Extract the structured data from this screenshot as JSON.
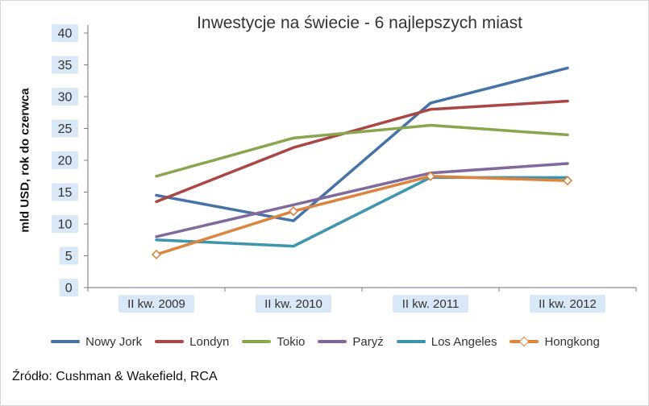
{
  "source": "Źródło: Cushman & Wakefield, RCA",
  "chart_data": {
    "type": "line",
    "title": "Inwestycje na świecie - 6 najlepszych miast",
    "ylabel": "mld USD, rok do czerwca",
    "xlabel": "",
    "categories": [
      "II kw. 2009",
      "II kw. 2010",
      "II kw. 2011",
      "II kw. 2012"
    ],
    "series": [
      {
        "name": "Nowy Jork",
        "color": "#4572A7",
        "values": [
          14.5,
          10.5,
          29.0,
          34.5
        ]
      },
      {
        "name": "Londyn",
        "color": "#AA4643",
        "values": [
          13.5,
          22.0,
          28.0,
          29.3
        ]
      },
      {
        "name": "Tokio",
        "color": "#89A54E",
        "values": [
          17.5,
          23.5,
          25.5,
          24.0
        ]
      },
      {
        "name": "Paryż",
        "color": "#80699B",
        "values": [
          8.0,
          13.0,
          18.0,
          19.5
        ]
      },
      {
        "name": "Los Angeles",
        "color": "#3D96AE",
        "values": [
          7.5,
          6.5,
          17.3,
          17.3
        ]
      },
      {
        "name": "Hongkong",
        "color": "#DB843D",
        "values": [
          5.2,
          12.0,
          17.5,
          16.8
        ],
        "marker": "diamond"
      }
    ],
    "ylim": [
      0,
      40
    ],
    "ytick_step": 5,
    "grid": false,
    "legend_position": "bottom",
    "tick_chip_color": "#d9e8f6"
  }
}
